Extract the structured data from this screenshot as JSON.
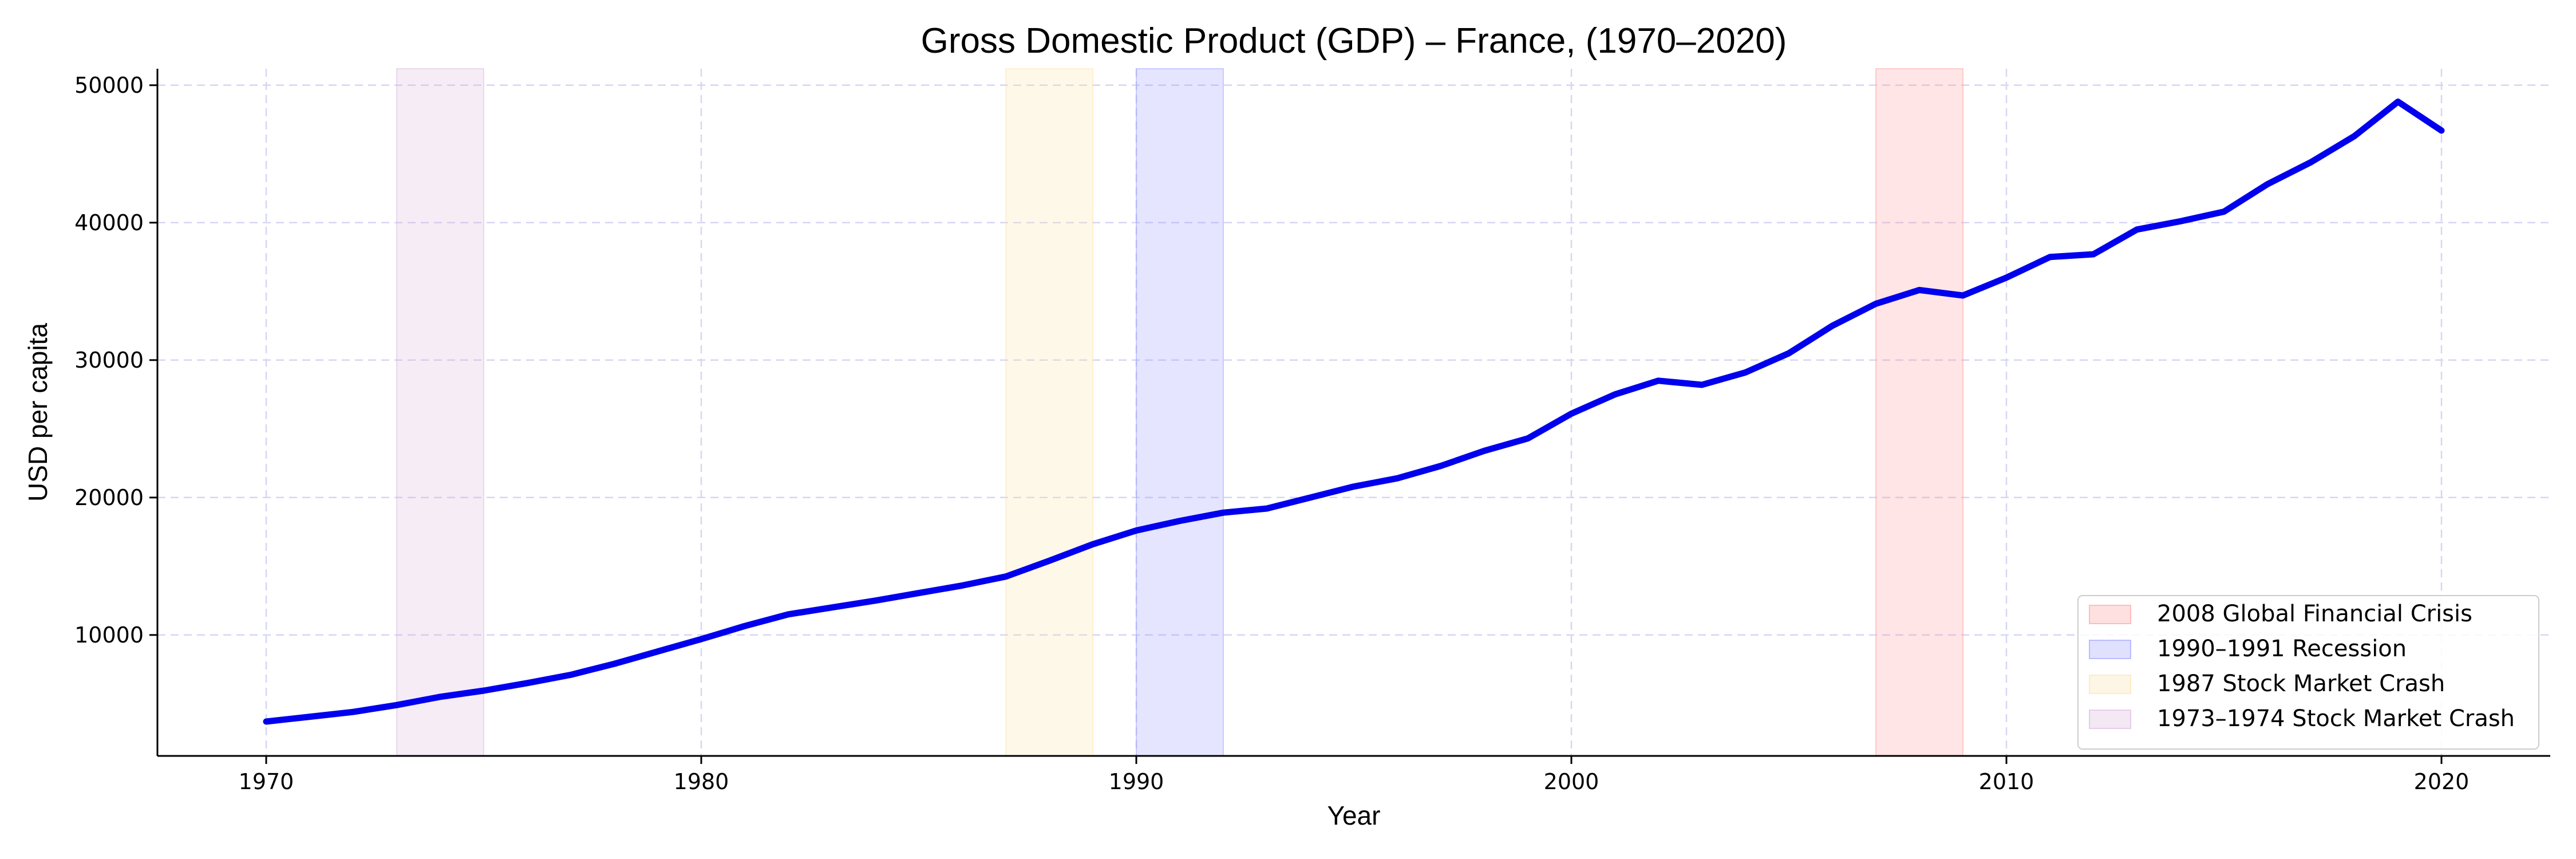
{
  "chart_data": {
    "type": "line",
    "title": "Gross Domestic Product (GDP) – France, (1970–2020)",
    "xlabel": "Year",
    "ylabel": "USD per capita",
    "xlim": [
      1967.5,
      2022.5
    ],
    "ylim": [
      1200,
      51200
    ],
    "xticks": [
      1970,
      1980,
      1990,
      2000,
      2010,
      2020
    ],
    "yticks": [
      10000,
      20000,
      30000,
      40000,
      50000
    ],
    "grid": true,
    "legend_position": "bottom-right",
    "series": [
      {
        "color": "#0000ee",
        "x": [
          1970,
          1971,
          1972,
          1973,
          1974,
          1975,
          1976,
          1977,
          1978,
          1979,
          1980,
          1981,
          1982,
          1983,
          1984,
          1985,
          1986,
          1987,
          1988,
          1989,
          1990,
          1991,
          1992,
          1993,
          1994,
          1995,
          1996,
          1997,
          1998,
          1999,
          2000,
          2001,
          2002,
          2003,
          2004,
          2005,
          2006,
          2007,
          2008,
          2009,
          2010,
          2011,
          2012,
          2013,
          2014,
          2015,
          2016,
          2017,
          2018,
          2019,
          2020
        ],
        "y": [
          3700,
          4050,
          4400,
          4900,
          5500,
          5950,
          6500,
          7100,
          7900,
          8800,
          9700,
          10650,
          11500,
          12000,
          12500,
          13050,
          13600,
          14250,
          15400,
          16600,
          17600,
          18300,
          18900,
          19200,
          20000,
          20800,
          21400,
          22300,
          23400,
          24300,
          26100,
          27500,
          28500,
          28200,
          29100,
          30500,
          32500,
          34100,
          35100,
          34700,
          36000,
          37500,
          37700,
          39500,
          40100,
          40800,
          42800,
          44400,
          46300,
          48800,
          46700
        ]
      }
    ],
    "shaded_regions": [
      {
        "label": "2008 Global Financial Crisis",
        "start": 2007,
        "end": 2009,
        "color": "#ff9999"
      },
      {
        "label": "1990–1991 Recession",
        "start": 1990,
        "end": 1992,
        "color": "#9999ff"
      },
      {
        "label": "1987 Stock Market Crash",
        "start": 1987,
        "end": 1989,
        "color": "#fde2a8"
      },
      {
        "label": "1973–1974 Stock Market Crash",
        "start": 1973,
        "end": 1975,
        "color": "#d8b4dc"
      }
    ]
  }
}
